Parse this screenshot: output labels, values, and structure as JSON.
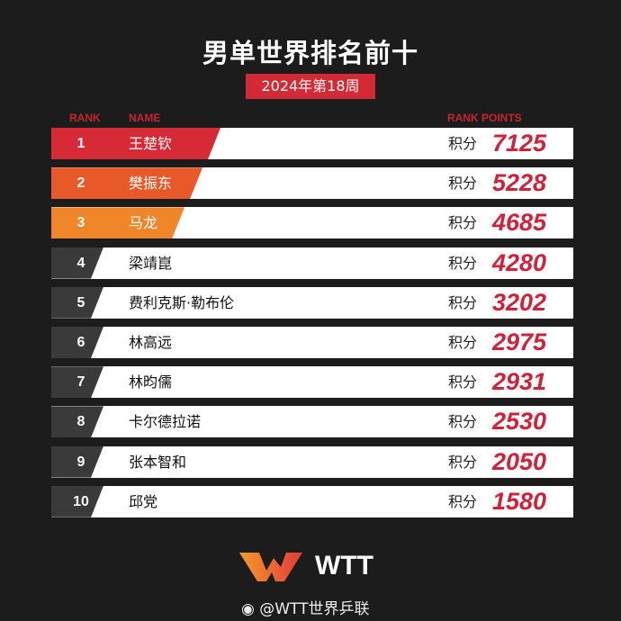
{
  "title": "男单世界排名前十",
  "subtitle": "2024年第18周",
  "headers": {
    "rank": "RANK",
    "name": "NAME",
    "points": "RANK POINTS"
  },
  "points_label": "积分",
  "colors": {
    "rank1": "#d62a36",
    "rank2": "#e8592a",
    "rank3": "#f0862a",
    "other": "#3a3a3a",
    "points": "#d0213a"
  },
  "rows": [
    {
      "rank": "1",
      "name": "王楚钦",
      "points": "7125"
    },
    {
      "rank": "2",
      "name": "樊振东",
      "points": "5228"
    },
    {
      "rank": "3",
      "name": "马龙",
      "points": "4685"
    },
    {
      "rank": "4",
      "name": "梁靖崑",
      "points": "4280"
    },
    {
      "rank": "5",
      "name": "费利克斯·勒布伦",
      "points": "3202"
    },
    {
      "rank": "6",
      "name": "林高远",
      "points": "2975"
    },
    {
      "rank": "7",
      "name": "林昀儒",
      "points": "2931"
    },
    {
      "rank": "8",
      "name": "卡尔德拉诺",
      "points": "2530"
    },
    {
      "rank": "9",
      "name": "张本智和",
      "points": "2050"
    },
    {
      "rank": "10",
      "name": "邱党",
      "points": "1580"
    }
  ],
  "logo_text": "WTT",
  "weibo_handle": "@WTT世界乒联"
}
